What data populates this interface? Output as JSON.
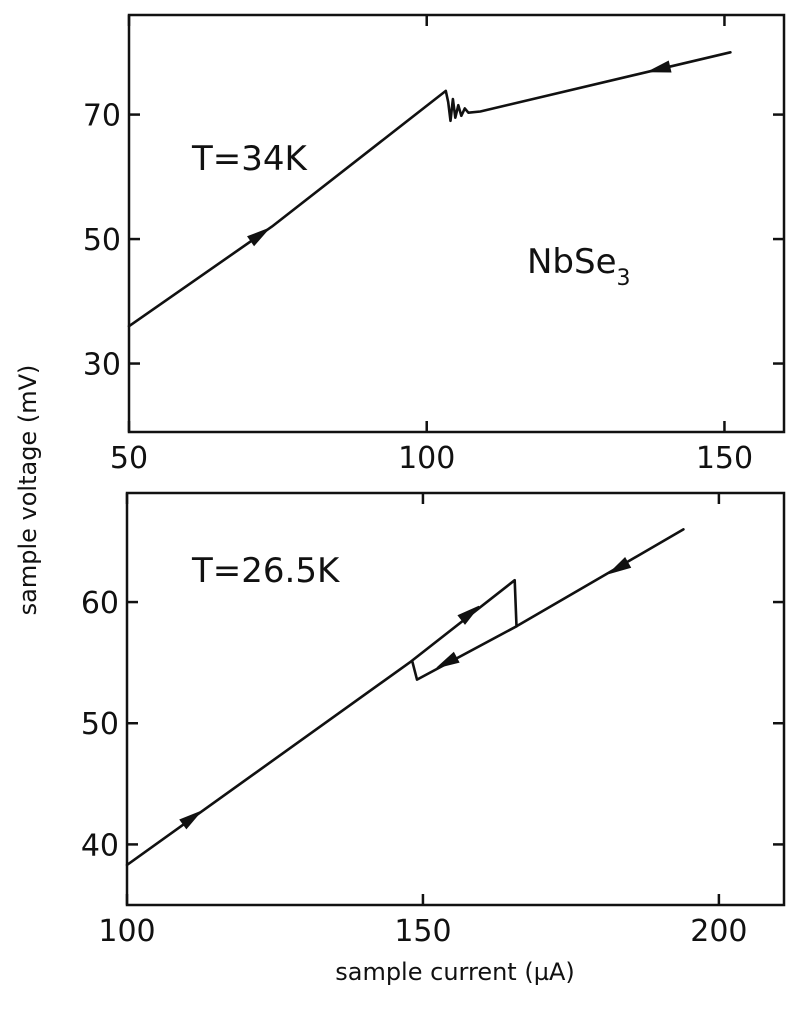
{
  "chart_data": [
    {
      "type": "line",
      "title": "",
      "xlabel": "",
      "ylabel": "sample voltage (mV)",
      "xlim": [
        50,
        160
      ],
      "ylim": [
        19,
        86
      ],
      "xticks": [
        50,
        100,
        150
      ],
      "yticks": [
        30,
        50,
        70
      ],
      "grid": false,
      "annotations": {
        "temperature": "T=34K",
        "material_main": "NbSe",
        "material_sub": "3"
      },
      "series": [
        {
          "points": [
            [
              50,
              36
            ],
            [
              74,
              52
            ],
            [
              103.2,
              73.8
            ],
            [
              103.6,
              72
            ],
            [
              104,
              69
            ],
            [
              104.4,
              72.5
            ],
            [
              104.8,
              69.5
            ],
            [
              105.3,
              71.5
            ],
            [
              105.8,
              69.8
            ],
            [
              106.4,
              71
            ],
            [
              107,
              70.3
            ],
            [
              109,
              70.5
            ],
            [
              151,
              80
            ]
          ],
          "arrows": [
            {
              "x": 72,
              "y": 50.7,
              "direction": "forward"
            },
            {
              "x": 139,
              "y": 77.3,
              "direction": "backward"
            }
          ]
        }
      ]
    },
    {
      "type": "line",
      "title": "",
      "xlabel": "sample current (µA)",
      "ylabel": "sample voltage (mV)",
      "xlim": [
        100,
        211
      ],
      "ylim": [
        35,
        69
      ],
      "xticks": [
        100,
        150,
        200
      ],
      "yticks": [
        40,
        50,
        60
      ],
      "grid": false,
      "annotations": {
        "temperature": "T=26.5K"
      },
      "series": [
        {
          "points": [
            [
              100,
              38.3
            ],
            [
              148,
              55.1
            ],
            [
              165.5,
              61.8
            ],
            [
              165.8,
              58
            ],
            [
              194,
              66
            ]
          ],
          "arrows": [
            {
              "x": 111,
              "y": 42.2,
              "direction": "forward"
            },
            {
              "x": 158,
              "y": 59.1,
              "direction": "forward"
            },
            {
              "x": 183,
              "y": 62.8,
              "direction": "backward"
            }
          ]
        },
        {
          "points": [
            [
              165.8,
              58
            ],
            [
              149,
              53.6
            ],
            [
              148.2,
              55.1
            ]
          ],
          "arrows": [
            {
              "x": 154,
              "y": 55,
              "direction": "forward"
            }
          ]
        }
      ]
    }
  ]
}
